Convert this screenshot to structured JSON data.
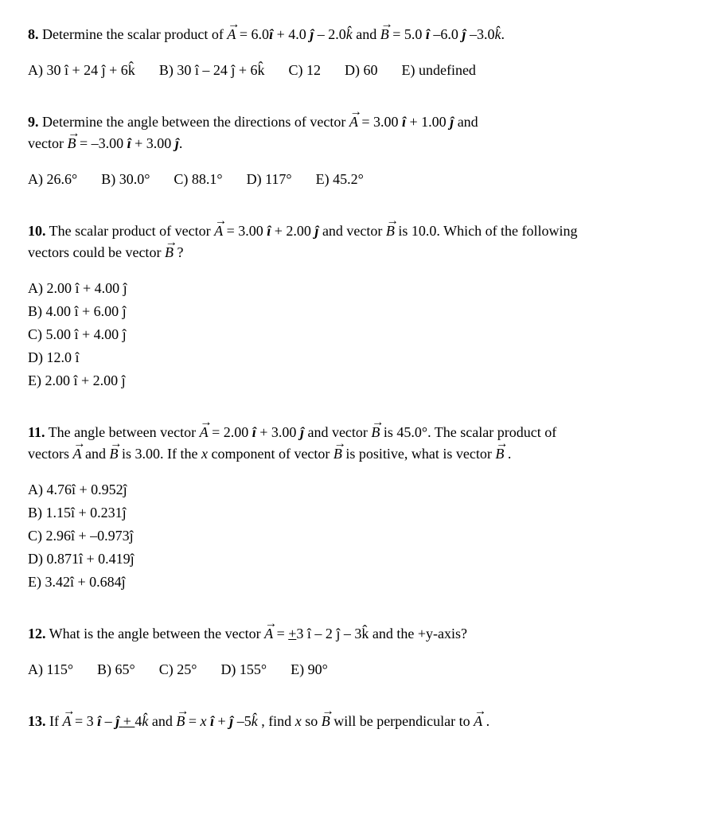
{
  "q8": {
    "number": "8.",
    "text_before": " Determine the scalar product of ",
    "vecA": "A",
    "eqA": " = 6.0",
    "i1": "î",
    "plus1": " + 4.0",
    "j1": " ĵ",
    "minus1": " – 2.0",
    "k1": "k̂",
    "and": " and ",
    "vecB": "B",
    "eqB": " = 5.0 ",
    "i2": "î",
    "minus2": " –6.0",
    "j2": " ĵ",
    "minus3": " –3.0",
    "k2": "k̂",
    "period": ".",
    "choices": {
      "A": "A) 30 î + 24 ĵ + 6k̂",
      "B": "B) 30 î – 24 ĵ + 6k̂",
      "C": "C) 12",
      "D": "D) 60",
      "E": "E) undefined"
    }
  },
  "q9": {
    "number": "9.",
    "text1": " Determine the angle between the directions of vector ",
    "vecA": "A",
    "eqA": " = 3.00 ",
    "i1": "î",
    "plus1": " + 1.00",
    "j1": " ĵ",
    "and": " and",
    "line2a": "vector ",
    "vecB": "B",
    "eqB": " = –3.00 ",
    "i2": "î",
    "plus2": " + 3.00",
    "j2": " ĵ",
    "period": ".",
    "choices": {
      "A": "A) 26.6°",
      "B": "B) 30.0°",
      "C": "C) 88.1°",
      "D": "D) 117°",
      "E": "E) 45.2°"
    }
  },
  "q10": {
    "number": "10.",
    "text1": " The scalar product of vector ",
    "vecA": "A",
    "eqA": " = 3.00 ",
    "i1": "î",
    "plus1": " + 2.00",
    "j1": " ĵ",
    "and": " and vector ",
    "vecB": "B",
    "rest1": " is 10.0. Which of the following",
    "line2a": "vectors could be vector ",
    "vecB2": "B",
    "qmark": " ?",
    "choices": {
      "A": "A) 2.00 î + 4.00 ĵ",
      "B": "B) 4.00 î + 6.00 ĵ",
      "C": "C) 5.00 î + 4.00 ĵ",
      "D": "D) 12.0 î",
      "E": "E) 2.00 î + 2.00 ĵ"
    }
  },
  "q11": {
    "number": "11.",
    "text1": " The angle between vector ",
    "vecA": "A",
    "eqA": " = 2.00 ",
    "i1": "î",
    "plus1": " + 3.00",
    "j1": " ĵ",
    "and": " and vector ",
    "vecB": "B",
    "rest1": " is 45.0°.  The scalar product of",
    "line2a": "vectors ",
    "vecA2": "A",
    "and2": " and ",
    "vecB2": "B",
    "mid": " is 3.00.  If the ",
    "x": "x",
    "comp": " component of vector ",
    "vecB3": "B",
    "pos": " is positive, what is vector ",
    "vecB4": "B",
    "period": " .",
    "choices": {
      "A": "A) 4.76î + 0.952ĵ",
      "B": "B) 1.15î + 0.231ĵ",
      "C": "C) 2.96î + –0.973ĵ",
      "D": "D) 0.871î + 0.419ĵ",
      "E": "E) 3.42î + 0.684ĵ"
    }
  },
  "q12": {
    "number": "12.",
    "text1": " What is the angle between the vector ",
    "vecA": "A",
    "eq": " = ",
    "u1": "+",
    "rest": "3 î – 2 ĵ  – 3k̂  and the +y-axis?",
    "choices": {
      "A": "A) 115°",
      "B": "B) 65°",
      "C": "C) 25°",
      "D": "D) 155°",
      "E": "E) 90°"
    }
  },
  "q13": {
    "number": "13.",
    "text1": " If ",
    "vecA": "A",
    "eqA": " = 3 ",
    "i1": "î",
    "minus": " – ",
    "j1": "ĵ ",
    "plus": "+ ",
    "four": "4",
    "k1": "k̂",
    "and": " and ",
    "vecB": "B",
    "eqB": " = ",
    "x": "x",
    "i2": " î",
    "plus2": " + ",
    "j2": "ĵ",
    "minus2": "  –5",
    "k2": "k̂",
    "comma": " , find ",
    "x2": "x",
    "so": " so ",
    "vecB2": "B",
    "perp": " will be perpendicular to ",
    "vecA2": "A",
    "period": " ."
  }
}
